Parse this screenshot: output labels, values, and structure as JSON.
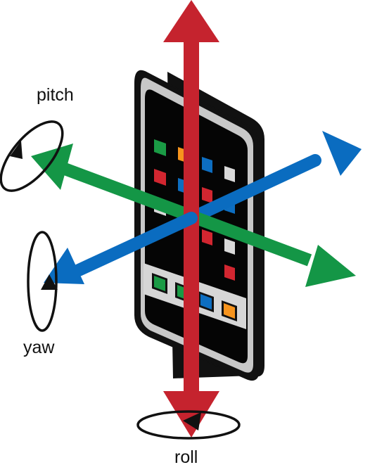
{
  "labels": {
    "pitch": "pitch",
    "yaw": "yaw",
    "roll": "roll"
  },
  "colors": {
    "roll_axis": "#c5232e",
    "yaw_axis": "#0a6cc0",
    "pitch_axis": "#149646",
    "phone_body": "#111111",
    "phone_bezel": "#c8c8c8",
    "app_green": "#1a9b45",
    "app_orange": "#f7941d",
    "app_blue": "#0d6ec1",
    "app_red": "#d22630",
    "app_gray": "#d9d9d9"
  },
  "icons": [
    "phone-illustration",
    "roll-arrow",
    "yaw-arrow",
    "pitch-arrow",
    "rotation-ring-icon"
  ]
}
